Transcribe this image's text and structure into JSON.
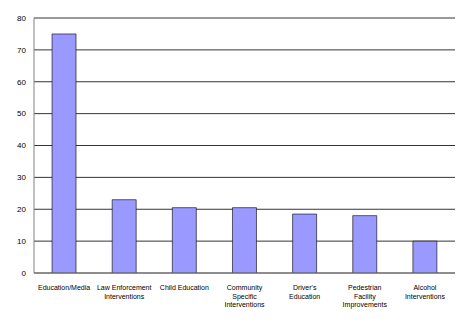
{
  "chart_data": {
    "type": "bar",
    "categories": [
      "Education/Media",
      "Law Enforcement Interventions",
      "Child Education",
      "Community Specific Interventions",
      "Driver's Education",
      "Pedestrian Facility Improvements",
      "Alcohol Interventions"
    ],
    "values": [
      75,
      23,
      20.5,
      20.5,
      18.5,
      18,
      10
    ],
    "color": "#9999ff",
    "ylim": [
      0,
      80
    ],
    "yticks": [
      0,
      10,
      20,
      30,
      40,
      50,
      60,
      70,
      80
    ],
    "grid": true
  }
}
